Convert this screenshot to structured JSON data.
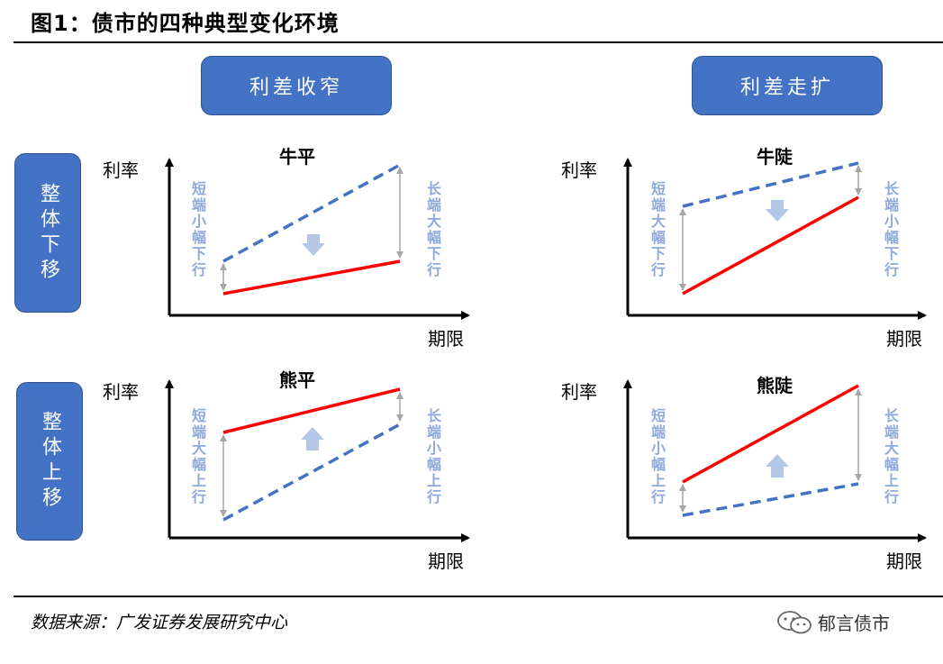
{
  "figure_title": "图1：债市的四种典型变化环境",
  "headers": {
    "narrow": "利差收窄",
    "widen": "利差走扩"
  },
  "rows": {
    "down": "整体下移",
    "up": "整体上移"
  },
  "axis": {
    "y": "利率",
    "x": "期限"
  },
  "panels": {
    "bull_flat": {
      "title": "牛平",
      "short_note": "短端小幅下行",
      "long_note": "长端大幅下行"
    },
    "bull_steep": {
      "title": "牛陡",
      "short_note": "短端大幅下行",
      "long_note": "长端小幅下行"
    },
    "bear_flat": {
      "title": "熊平",
      "short_note": "短端大幅上行",
      "long_note": "长端小幅上行"
    },
    "bear_steep": {
      "title": "熊陡",
      "short_note": "短端小幅上行",
      "long_note": "长端大幅上行"
    }
  },
  "footer": {
    "source": "数据来源：广发证券发展研究中心",
    "brand": "郁言债市"
  },
  "colors": {
    "before_curve": "#4472c4",
    "after_curve": "#ff0000",
    "arrow": "#b4c7e7",
    "note": "#8ea9db",
    "pill": "#4472c4"
  }
}
